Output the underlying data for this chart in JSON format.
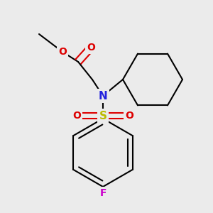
{
  "bg_color": "#ebebeb",
  "atom_colors": {
    "C": "#000000",
    "N": "#2222dd",
    "O": "#dd0000",
    "S": "#bbbb00",
    "F": "#cc00cc"
  },
  "bond_color": "#000000",
  "bond_lw": 1.5,
  "fig_size": [
    3.0,
    3.0
  ],
  "dpi": 100
}
